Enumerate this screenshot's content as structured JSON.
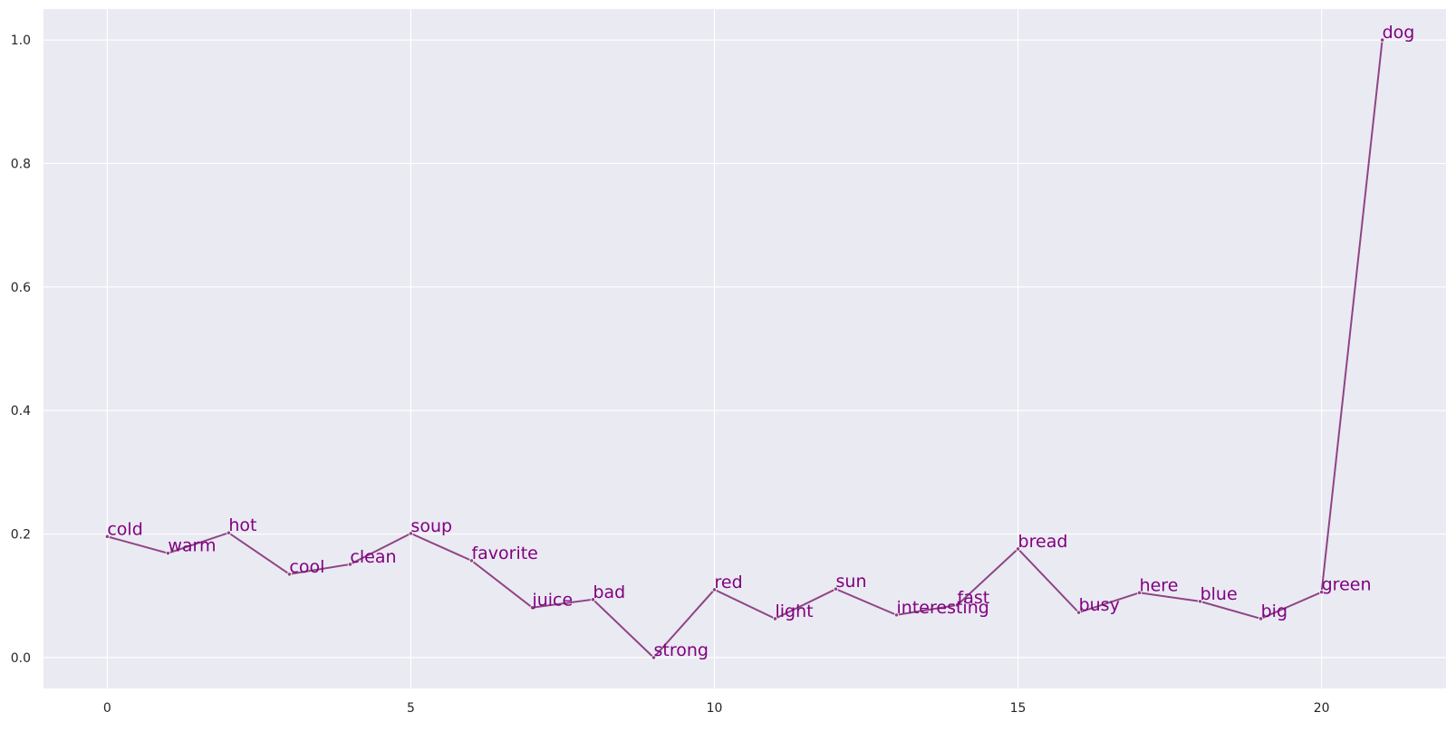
{
  "chart_data": {
    "type": "line",
    "title": "",
    "xlabel": "",
    "ylabel": "",
    "xlim": [
      -1.05,
      22.05
    ],
    "ylim": [
      -0.05,
      1.05
    ],
    "grid": true,
    "x_ticks": [
      0,
      5,
      10,
      15,
      20
    ],
    "y_ticks": [
      0.0,
      0.2,
      0.4,
      0.6,
      0.8,
      1.0
    ],
    "x_tick_labels": [
      "0",
      "5",
      "10",
      "15",
      "20"
    ],
    "y_tick_labels": [
      "0.0",
      "0.2",
      "0.4",
      "0.6",
      "0.8",
      "1.0"
    ],
    "series": [
      {
        "color": "#8e4585",
        "label_color": "#800080",
        "x": [
          0,
          1,
          2,
          3,
          4,
          5,
          6,
          7,
          8,
          9,
          10,
          11,
          12,
          13,
          14,
          15,
          16,
          17,
          18,
          19,
          20,
          21
        ],
        "y": [
          0.196,
          0.169,
          0.202,
          0.135,
          0.151,
          0.201,
          0.157,
          0.081,
          0.094,
          0.0,
          0.11,
          0.063,
          0.111,
          0.069,
          0.085,
          0.176,
          0.073,
          0.105,
          0.091,
          0.063,
          0.106,
          1.0
        ],
        "point_labels": [
          "cold",
          "warm",
          "hot",
          "cool",
          "clean",
          "soup",
          "favorite",
          "juice",
          "bad",
          "strong",
          "red",
          "light",
          "sun",
          "interesting",
          "fast",
          "bread",
          "busy",
          "here",
          "blue",
          "big",
          "green",
          "dog"
        ]
      }
    ]
  }
}
